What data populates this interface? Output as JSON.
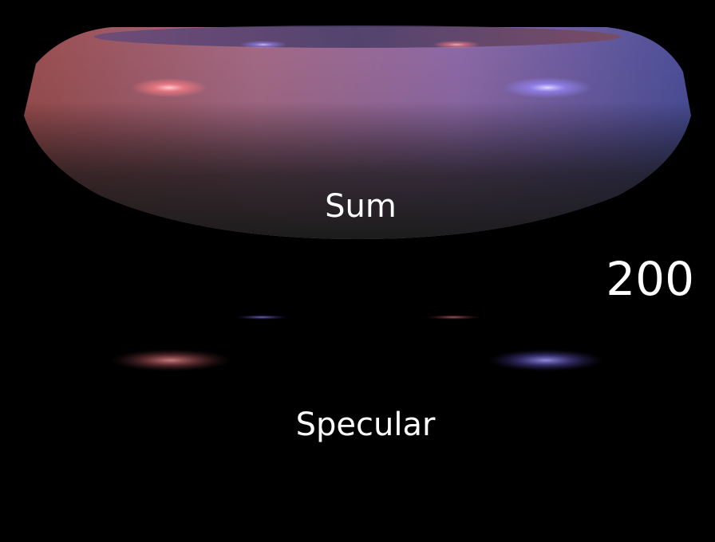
{
  "panels": {
    "sum_label": "Sum",
    "specular_label": "Specular"
  },
  "shininess": {
    "value_text": "200"
  },
  "light_colors": {
    "left": "#ff6f78",
    "right": "#8a7cff"
  },
  "torus_colors": {
    "warm": "#b5626a",
    "cool": "#5c5aa8",
    "shadow": "#1b1b1d"
  }
}
